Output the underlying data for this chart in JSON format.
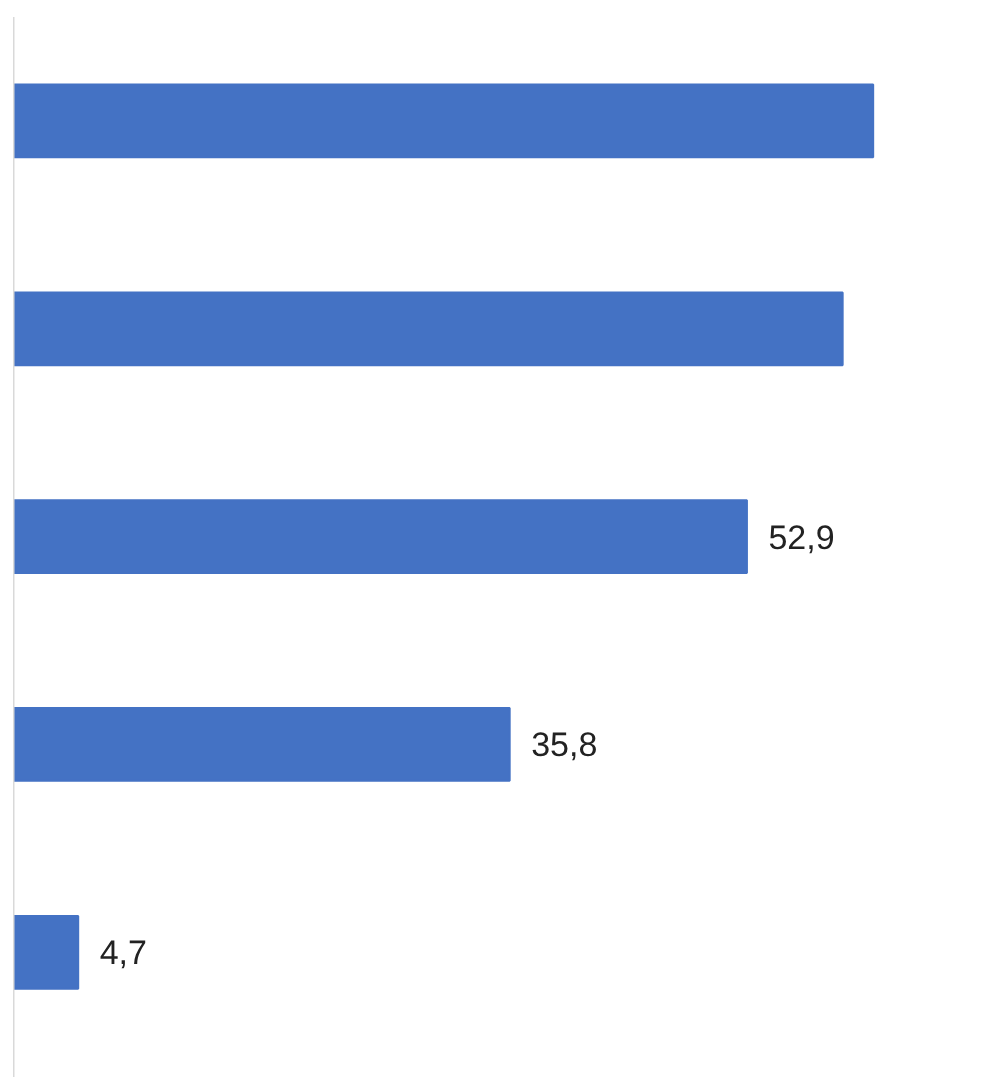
{
  "chart_data": {
    "type": "bar",
    "orientation": "horizontal",
    "categories": [
      null,
      null,
      null,
      null,
      null
    ],
    "values": [
      62,
      59.8,
      52.9,
      35.8,
      4.7
    ],
    "value_labels": [
      null,
      null,
      "52,9",
      "35,8",
      "4,7"
    ],
    "color": "#4472c4"
  }
}
